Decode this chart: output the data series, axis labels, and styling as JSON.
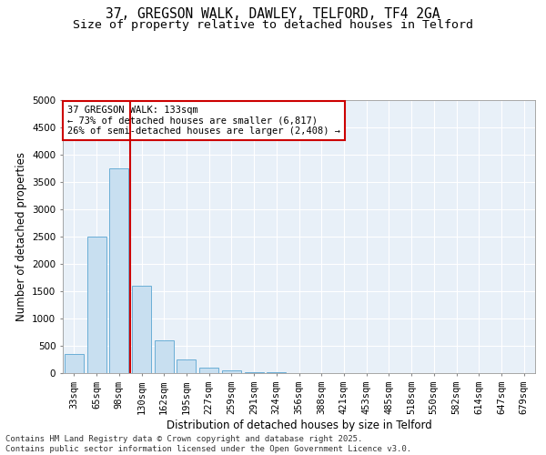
{
  "title_line1": "37, GREGSON WALK, DAWLEY, TELFORD, TF4 2GA",
  "title_line2": "Size of property relative to detached houses in Telford",
  "xlabel": "Distribution of detached houses by size in Telford",
  "ylabel": "Number of detached properties",
  "categories": [
    "33sqm",
    "65sqm",
    "98sqm",
    "130sqm",
    "162sqm",
    "195sqm",
    "227sqm",
    "259sqm",
    "291sqm",
    "324sqm",
    "356sqm",
    "388sqm",
    "421sqm",
    "453sqm",
    "485sqm",
    "518sqm",
    "550sqm",
    "582sqm",
    "614sqm",
    "647sqm",
    "679sqm"
  ],
  "values": [
    350,
    2500,
    3750,
    1600,
    600,
    250,
    100,
    50,
    20,
    10,
    5,
    3,
    2,
    0,
    0,
    0,
    0,
    0,
    0,
    0,
    0
  ],
  "bar_color": "#c8dff0",
  "bar_edge_color": "#6aaed6",
  "vline_x_index": 3,
  "vline_color": "#cc0000",
  "ylim": [
    0,
    5000
  ],
  "yticks": [
    0,
    500,
    1000,
    1500,
    2000,
    2500,
    3000,
    3500,
    4000,
    4500,
    5000
  ],
  "annotation_text": "37 GREGSON WALK: 133sqm\n← 73% of detached houses are smaller (6,817)\n26% of semi-detached houses are larger (2,408) →",
  "annotation_box_facecolor": "#ffffff",
  "annotation_box_edgecolor": "#cc0000",
  "footer_line1": "Contains HM Land Registry data © Crown copyright and database right 2025.",
  "footer_line2": "Contains public sector information licensed under the Open Government Licence v3.0.",
  "bg_color": "#ffffff",
  "plot_bg_color": "#e8f0f8",
  "grid_color": "#ffffff",
  "title_fontsize": 10.5,
  "subtitle_fontsize": 9.5,
  "axis_label_fontsize": 8.5,
  "tick_fontsize": 7.5,
  "annotation_fontsize": 7.5,
  "footer_fontsize": 6.5
}
